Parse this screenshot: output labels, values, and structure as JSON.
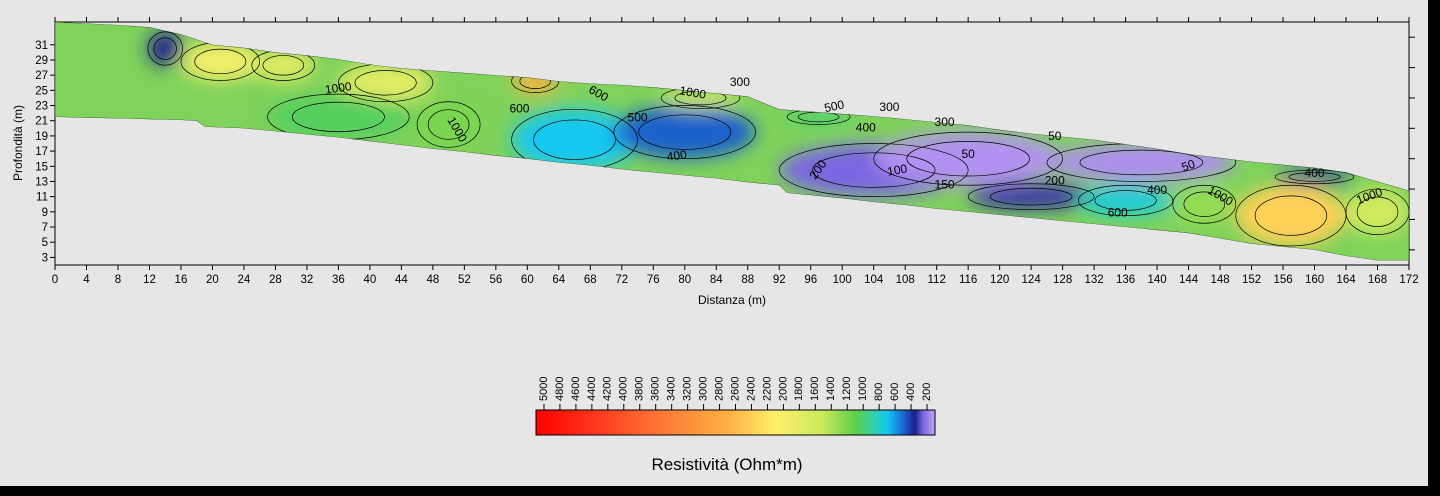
{
  "chart_data": {
    "type": "heatmap",
    "xlabel": "Distanza (m)",
    "ylabel": "Profondità (m)",
    "xlim": [
      0,
      172
    ],
    "ylim": [
      2,
      34
    ],
    "x_ticks": [
      0,
      4,
      8,
      12,
      16,
      20,
      24,
      28,
      32,
      36,
      40,
      44,
      48,
      52,
      56,
      60,
      64,
      68,
      72,
      76,
      80,
      84,
      88,
      92,
      96,
      100,
      104,
      108,
      112,
      116,
      120,
      124,
      128,
      132,
      136,
      140,
      144,
      148,
      152,
      156,
      160,
      164,
      168,
      172
    ],
    "y_ticks": [
      3,
      5,
      7,
      9,
      11,
      13,
      15,
      17,
      19,
      21,
      23,
      25,
      27,
      29,
      31
    ],
    "surface_elevation": [
      [
        0,
        34
      ],
      [
        4,
        33.8
      ],
      [
        8,
        33.6
      ],
      [
        12,
        33.3
      ],
      [
        16,
        32.4
      ],
      [
        20,
        31
      ],
      [
        24,
        30.6
      ],
      [
        28,
        30
      ],
      [
        32,
        29.6
      ],
      [
        36,
        29.1
      ],
      [
        40,
        28.4
      ],
      [
        44,
        27.9
      ],
      [
        48,
        27.6
      ],
      [
        52,
        27.3
      ],
      [
        56,
        27
      ],
      [
        60,
        26.7
      ],
      [
        64,
        26.2
      ],
      [
        68,
        25.9
      ],
      [
        72,
        25.7
      ],
      [
        76,
        25.4
      ],
      [
        80,
        25
      ],
      [
        84,
        24.6
      ],
      [
        88,
        24.2
      ],
      [
        92,
        22.5
      ],
      [
        96,
        22.2
      ],
      [
        100,
        21.9
      ],
      [
        104,
        21.6
      ],
      [
        108,
        21.2
      ],
      [
        112,
        20.8
      ],
      [
        116,
        20.4
      ],
      [
        120,
        19.8
      ],
      [
        124,
        19.3
      ],
      [
        128,
        18.9
      ],
      [
        132,
        18.5
      ],
      [
        136,
        17.9
      ],
      [
        140,
        17.3
      ],
      [
        144,
        16.6
      ],
      [
        148,
        16.1
      ],
      [
        152,
        15.6
      ],
      [
        156,
        15.2
      ],
      [
        160,
        14.8
      ],
      [
        164,
        14.2
      ],
      [
        168,
        13
      ],
      [
        172,
        11.8
      ]
    ],
    "bottom_elevation": [
      [
        0,
        21.5
      ],
      [
        4,
        21.4
      ],
      [
        8,
        21.3
      ],
      [
        12,
        21.2
      ],
      [
        16,
        21.1
      ],
      [
        18,
        21
      ],
      [
        19,
        20.2
      ],
      [
        24,
        20
      ],
      [
        28,
        19.6
      ],
      [
        32,
        19.2
      ],
      [
        36,
        18.8
      ],
      [
        40,
        18.3
      ],
      [
        44,
        17.8
      ],
      [
        48,
        17.3
      ],
      [
        52,
        16.9
      ],
      [
        56,
        16.4
      ],
      [
        60,
        16
      ],
      [
        64,
        15.5
      ],
      [
        68,
        15.1
      ],
      [
        72,
        14.6
      ],
      [
        76,
        14.2
      ],
      [
        80,
        13.8
      ],
      [
        84,
        13.4
      ],
      [
        88,
        12.9
      ],
      [
        92,
        12.5
      ],
      [
        93,
        11.5
      ],
      [
        96,
        11.2
      ],
      [
        100,
        10.8
      ],
      [
        104,
        10.3
      ],
      [
        108,
        9.9
      ],
      [
        112,
        9.4
      ],
      [
        116,
        9
      ],
      [
        120,
        8.6
      ],
      [
        124,
        8.2
      ],
      [
        128,
        7.8
      ],
      [
        132,
        7.4
      ],
      [
        136,
        7
      ],
      [
        140,
        6.6
      ],
      [
        144,
        6.2
      ],
      [
        148,
        5.5
      ],
      [
        152,
        4.8
      ],
      [
        156,
        4.4
      ],
      [
        160,
        4
      ],
      [
        164,
        3.2
      ],
      [
        168,
        2.6
      ],
      [
        172,
        2.6
      ]
    ],
    "anomalies": [
      {
        "x": 14,
        "y": 30.5,
        "rx": 2.2,
        "ry": 2.2,
        "resistivity": 250
      },
      {
        "x": 21,
        "y": 28.8,
        "rx": 5,
        "ry": 2.5,
        "resistivity": 1900
      },
      {
        "x": 29,
        "y": 28.3,
        "rx": 4,
        "ry": 2,
        "resistivity": 1700
      },
      {
        "x": 42,
        "y": 26,
        "rx": 6,
        "ry": 2.5,
        "resistivity": 1700
      },
      {
        "x": 36,
        "y": 21.5,
        "rx": 9,
        "ry": 3,
        "resistivity": 950
      },
      {
        "x": 50,
        "y": 20.5,
        "rx": 4,
        "ry": 3,
        "resistivity": 1100
      },
      {
        "x": 61,
        "y": 26.2,
        "rx": 3,
        "ry": 1.5,
        "resistivity": 2600
      },
      {
        "x": 66,
        "y": 18.5,
        "rx": 8,
        "ry": 4,
        "resistivity": 600
      },
      {
        "x": 80,
        "y": 19.5,
        "rx": 9,
        "ry": 3.5,
        "resistivity": 380
      },
      {
        "x": 82,
        "y": 24,
        "rx": 5,
        "ry": 1.4,
        "resistivity": 1400
      },
      {
        "x": 97,
        "y": 21.5,
        "rx": 4,
        "ry": 1,
        "resistivity": 900
      },
      {
        "x": 104,
        "y": 14.5,
        "rx": 12,
        "ry": 3.5,
        "resistivity": 150
      },
      {
        "x": 116,
        "y": 16,
        "rx": 12,
        "ry": 3.5,
        "resistivity": 40
      },
      {
        "x": 138,
        "y": 15.5,
        "rx": 12,
        "ry": 2.5,
        "resistivity": 50
      },
      {
        "x": 124,
        "y": 11,
        "rx": 8,
        "ry": 1.7,
        "resistivity": 220
      },
      {
        "x": 136,
        "y": 10.5,
        "rx": 6,
        "ry": 2,
        "resistivity": 650
      },
      {
        "x": 146,
        "y": 10,
        "rx": 4,
        "ry": 2.5,
        "resistivity": 1200
      },
      {
        "x": 157,
        "y": 8.5,
        "rx": 7,
        "ry": 4,
        "resistivity": 2300
      },
      {
        "x": 168,
        "y": 9,
        "rx": 4,
        "ry": 3,
        "resistivity": 1500
      },
      {
        "x": 160,
        "y": 13.6,
        "rx": 5,
        "ry": 0.9,
        "resistivity": 300
      }
    ],
    "contour_labels": [
      {
        "text": "1000",
        "x": 36,
        "y": 25.2,
        "rotation": 8
      },
      {
        "text": "1000",
        "x": 51,
        "y": 19.8,
        "rotation": -60
      },
      {
        "text": "600",
        "x": 59,
        "y": 22.5,
        "rotation": 0
      },
      {
        "text": "600",
        "x": 69,
        "y": 24.5,
        "rotation": -30
      },
      {
        "text": "500",
        "x": 74,
        "y": 21.3,
        "rotation": 0
      },
      {
        "text": "1000",
        "x": 81,
        "y": 24.6,
        "rotation": -10
      },
      {
        "text": "300",
        "x": 87,
        "y": 26,
        "rotation": 0
      },
      {
        "text": "400",
        "x": 79,
        "y": 16.3,
        "rotation": 8
      },
      {
        "text": "500",
        "x": 99,
        "y": 22.8,
        "rotation": 12
      },
      {
        "text": "300",
        "x": 106,
        "y": 22.7,
        "rotation": 0
      },
      {
        "text": "400",
        "x": 103,
        "y": 20,
        "rotation": 0
      },
      {
        "text": "300",
        "x": 113,
        "y": 20.7,
        "rotation": 0
      },
      {
        "text": "200",
        "x": 97,
        "y": 14.5,
        "rotation": 55
      },
      {
        "text": "100",
        "x": 107,
        "y": 14.4,
        "rotation": 10
      },
      {
        "text": "50",
        "x": 116,
        "y": 16.5,
        "rotation": 0
      },
      {
        "text": "150",
        "x": 113,
        "y": 12.5,
        "rotation": 0
      },
      {
        "text": "50",
        "x": 127,
        "y": 18.9,
        "rotation": 0
      },
      {
        "text": "200",
        "x": 127,
        "y": 13,
        "rotation": 0
      },
      {
        "text": "400",
        "x": 140,
        "y": 11.8,
        "rotation": 0
      },
      {
        "text": "50",
        "x": 144,
        "y": 15,
        "rotation": 20
      },
      {
        "text": "600",
        "x": 135,
        "y": 8.8,
        "rotation": 0
      },
      {
        "text": "1000",
        "x": 148,
        "y": 11,
        "rotation": -30
      },
      {
        "text": "400",
        "x": 160,
        "y": 14,
        "rotation": 0
      },
      {
        "text": "1000",
        "x": 167,
        "y": 11,
        "rotation": 20
      }
    ],
    "colorbar": {
      "title": "Resistività (Ohm*m)",
      "tick_labels": [
        "5000",
        "4800",
        "4600",
        "4400",
        "4200",
        "4000",
        "3800",
        "3600",
        "3400",
        "3200",
        "3000",
        "2800",
        "2600",
        "2400",
        "2200",
        "2000",
        "1800",
        "1600",
        "1400",
        "1200",
        "1000",
        "800",
        "600",
        "400",
        "200"
      ],
      "color_stops": [
        {
          "value": 5000,
          "color": "#ff0000"
        },
        {
          "value": 4200,
          "color": "#ff3c22"
        },
        {
          "value": 3400,
          "color": "#ff7a36"
        },
        {
          "value": 2600,
          "color": "#ffb044"
        },
        {
          "value": 2000,
          "color": "#fff06a"
        },
        {
          "value": 1400,
          "color": "#c8ea5c"
        },
        {
          "value": 1000,
          "color": "#5fcf4a"
        },
        {
          "value": 800,
          "color": "#38d0a0"
        },
        {
          "value": 600,
          "color": "#12c8f0"
        },
        {
          "value": 400,
          "color": "#1c6ad4"
        },
        {
          "value": 250,
          "color": "#1a1f8f"
        },
        {
          "value": 150,
          "color": "#7a66e0"
        },
        {
          "value": 0,
          "color": "#c7a2f7"
        }
      ]
    }
  }
}
